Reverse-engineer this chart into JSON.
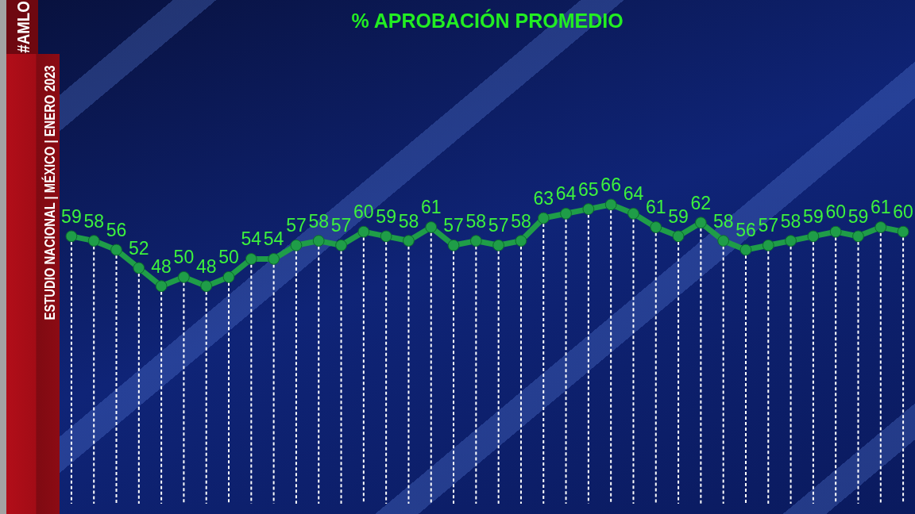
{
  "chart_data": {
    "type": "line",
    "title": "% APROBACIÓN PROMEDIO",
    "annotations": [
      "#AMLO",
      "ESTUDIO NACIONAL | MÉXICO | ENERO 2023"
    ],
    "categories": [
      null,
      null,
      null,
      null,
      null,
      null,
      null,
      null,
      null,
      null,
      null,
      null,
      null,
      null,
      null,
      null,
      null,
      null,
      null,
      null,
      null,
      null,
      null,
      null,
      null,
      null,
      null,
      null,
      null,
      null,
      null,
      null,
      null,
      null,
      null,
      null,
      null,
      null
    ],
    "series": [
      {
        "color": "#1f9d48",
        "values": [
          59,
          58,
          56,
          52,
          48,
          50,
          48,
          50,
          54,
          54,
          57,
          58,
          57,
          60,
          59,
          58,
          61,
          57,
          58,
          57,
          58,
          63,
          64,
          65,
          66,
          64,
          61,
          59,
          62,
          58,
          56,
          57,
          58,
          59,
          60,
          59,
          61,
          60
        ]
      }
    ],
    "tick_labels": false,
    "data_labels": true,
    "marker": "circle",
    "grid": "x"
  }
}
